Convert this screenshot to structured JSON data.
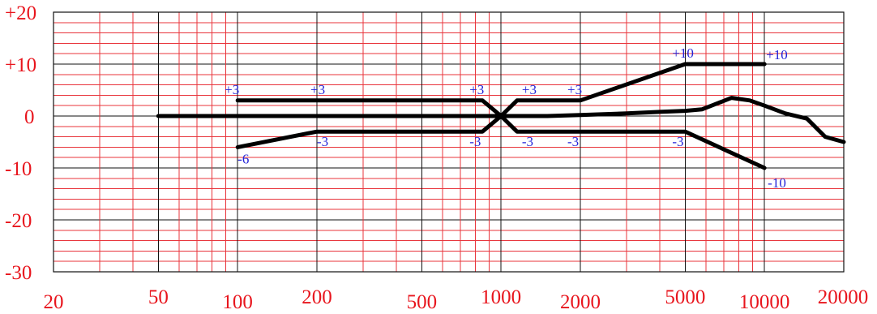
{
  "chart_data": {
    "type": "line",
    "title": "",
    "xlabel": "",
    "ylabel": "",
    "x_scale": "log",
    "xlim": [
      20,
      20000
    ],
    "ylim": [
      -30,
      20
    ],
    "grid": true,
    "x_tick_labels": [
      "20",
      "50",
      "100",
      "200",
      "500",
      "1000",
      "2000",
      "5000",
      "10000",
      "20000"
    ],
    "y_tick_labels": [
      "+20",
      "+10",
      "0",
      "-10",
      "-20",
      "-30"
    ],
    "series": [
      {
        "values": [
          [
            100,
            3
          ],
          [
            850,
            3
          ],
          [
            1000,
            0
          ],
          [
            1150,
            3
          ],
          [
            2000,
            3
          ],
          [
            5000,
            10
          ],
          [
            10000,
            10
          ]
        ]
      },
      {
        "values": [
          [
            100,
            -6
          ],
          [
            200,
            -3
          ],
          [
            850,
            -3
          ],
          [
            1000,
            0
          ],
          [
            1150,
            -3
          ],
          [
            5000,
            -3
          ],
          [
            10000,
            -10
          ]
        ]
      },
      {
        "values": [
          [
            50,
            0
          ],
          [
            1000,
            0
          ],
          [
            1500,
            0
          ],
          [
            2000,
            0.2
          ],
          [
            3000,
            0.5
          ],
          [
            4000,
            0.8
          ],
          [
            5000,
            1
          ],
          [
            5800,
            1.3
          ],
          [
            7500,
            3.5
          ],
          [
            8800,
            3
          ],
          [
            10000,
            2
          ],
          [
            12000,
            0.5
          ],
          [
            14500,
            -0.5
          ],
          [
            17000,
            -4
          ],
          [
            20000,
            -5
          ]
        ]
      }
    ],
    "annotations": [
      {
        "text": "+3",
        "x": 100,
        "y": 3
      },
      {
        "text": "+3",
        "x": 200,
        "y": 3
      },
      {
        "text": "+3",
        "x": 850,
        "y": 3
      },
      {
        "text": "+3",
        "x": 1150,
        "y": 3
      },
      {
        "text": "+3",
        "x": 2000,
        "y": 3
      },
      {
        "text": "+10",
        "x": 5000,
        "y": 10
      },
      {
        "text": "+10",
        "x": 10000,
        "y": 10
      },
      {
        "text": "-6",
        "x": 100,
        "y": -6
      },
      {
        "text": "-3",
        "x": 200,
        "y": -3
      },
      {
        "text": "-3",
        "x": 850,
        "y": -3
      },
      {
        "text": "-3",
        "x": 1150,
        "y": -3
      },
      {
        "text": "-3",
        "x": 2000,
        "y": -3
      },
      {
        "text": "-3",
        "x": 5000,
        "y": -3
      },
      {
        "text": "-10",
        "x": 10000,
        "y": -10
      }
    ]
  }
}
